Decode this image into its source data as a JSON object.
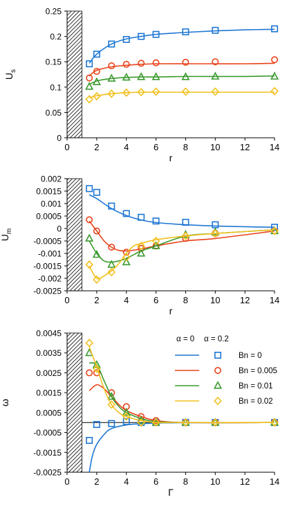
{
  "colors": {
    "Bn = 0": "#1f77d4",
    "Bn = 0.005": "#e8431a",
    "Bn = 0.01": "#3a9a2e",
    "Bn = 0.02": "#f2c01e"
  },
  "chart_data": [
    {
      "type": "line",
      "ylabel": "U",
      "ylabel_sub": "s",
      "xlabel": "r",
      "xlim": [
        0,
        14
      ],
      "ylim": [
        0,
        0.25
      ],
      "xticks": [
        "0",
        "2",
        "4",
        "6",
        "8",
        "10",
        "12",
        "14"
      ],
      "yticks": [
        "0",
        "0.05",
        "0.1",
        "0.15",
        "0.2",
        "0.25"
      ],
      "grid": false,
      "hatched_region_x": [
        0,
        1
      ],
      "series": [
        {
          "name": "Bn = 0",
          "marker": "square",
          "x_line": [
            1.5,
            2,
            3,
            4,
            5,
            6,
            8,
            10,
            12,
            14
          ],
          "y_line": [
            0.147,
            0.165,
            0.185,
            0.195,
            0.2,
            0.204,
            0.208,
            0.211,
            0.213,
            0.214
          ],
          "x_points": [
            1.5,
            2,
            3,
            4,
            5,
            6,
            8,
            10,
            14
          ],
          "y_points": [
            0.146,
            0.165,
            0.185,
            0.194,
            0.2,
            0.204,
            0.209,
            0.212,
            0.215
          ]
        },
        {
          "name": "Bn = 0.005",
          "marker": "circle",
          "x_line": [
            1.5,
            2,
            3,
            4,
            5,
            6,
            8,
            10,
            12,
            14
          ],
          "y_line": [
            0.122,
            0.133,
            0.14,
            0.143,
            0.145,
            0.146,
            0.146,
            0.146,
            0.146,
            0.147
          ],
          "x_points": [
            1.5,
            2,
            3,
            4,
            5,
            6,
            8,
            10,
            14
          ],
          "y_points": [
            0.118,
            0.131,
            0.142,
            0.145,
            0.147,
            0.148,
            0.149,
            0.15,
            0.154
          ]
        },
        {
          "name": "Bn = 0.01",
          "marker": "triangle",
          "x_line": [
            1.5,
            2,
            3,
            4,
            5,
            6,
            8,
            10,
            12,
            14
          ],
          "y_line": [
            0.105,
            0.112,
            0.117,
            0.119,
            0.12,
            0.12,
            0.121,
            0.121,
            0.121,
            0.122
          ],
          "x_points": [
            1.5,
            2,
            3,
            4,
            5,
            6,
            8,
            10,
            14
          ],
          "y_points": [
            0.101,
            0.11,
            0.117,
            0.119,
            0.12,
            0.12,
            0.12,
            0.121,
            0.121
          ]
        },
        {
          "name": "Bn = 0.02",
          "marker": "diamond",
          "x_line": [
            1.5,
            2,
            3,
            4,
            5,
            6,
            8,
            10,
            12,
            14
          ],
          "y_line": [
            0.079,
            0.083,
            0.087,
            0.089,
            0.09,
            0.09,
            0.09,
            0.09,
            0.09,
            0.09
          ],
          "x_points": [
            1.5,
            2,
            3,
            4,
            5,
            6,
            8,
            10,
            14
          ],
          "y_points": [
            0.076,
            0.082,
            0.087,
            0.089,
            0.09,
            0.091,
            0.091,
            0.091,
            0.092
          ]
        }
      ]
    },
    {
      "type": "line",
      "ylabel": "U",
      "ylabel_sub": "m",
      "xlabel": "r",
      "xlim": [
        0,
        14
      ],
      "ylim": [
        -0.0025,
        0.002
      ],
      "xticks": [
        "0",
        "2",
        "4",
        "6",
        "8",
        "10",
        "12",
        "14"
      ],
      "yticks": [
        "-0.0025",
        "-0.002",
        "-0.0015",
        "-0.001",
        "-0.0005",
        "0",
        "0.0005",
        "0.001",
        "0.0015",
        "0.002"
      ],
      "grid": false,
      "hatched_region_x": [
        0,
        1
      ],
      "series": [
        {
          "name": "Bn = 0",
          "marker": "square",
          "x_line": [
            1.5,
            2,
            3,
            4,
            5,
            6,
            8,
            10,
            12,
            14
          ],
          "y_line": [
            0.00135,
            0.0012,
            0.0008,
            0.00052,
            0.00034,
            0.00024,
            0.00015,
            0.0001,
            7e-05,
            5e-05
          ],
          "x_points": [
            1.5,
            2,
            3,
            4,
            5,
            6,
            8,
            10,
            14
          ],
          "y_points": [
            0.0016,
            0.00145,
            0.0009,
            0.0006,
            0.00045,
            0.0003,
            0.00025,
            0.00015,
            5e-05
          ]
        },
        {
          "name": "Bn = 0.005",
          "marker": "circle",
          "x_line": [
            1.5,
            2,
            2.5,
            3,
            3.5,
            4,
            4.5,
            5,
            6,
            8,
            10,
            14
          ],
          "y_line": [
            0.0003,
            -0.0001,
            -0.0005,
            -0.00075,
            -0.00088,
            -0.0009,
            -0.00087,
            -0.00082,
            -0.0007,
            -0.0005,
            -0.0004,
            -0.0001
          ],
          "x_points": [
            1.5,
            2,
            3,
            4,
            5,
            6,
            8,
            10,
            14
          ],
          "y_points": [
            0.00035,
            -0.0001,
            -0.00075,
            -0.00095,
            -0.0008,
            -0.0007,
            -0.0004,
            -0.0002,
            -0.0001
          ]
        },
        {
          "name": "Bn = 0.01",
          "marker": "triangle",
          "x_line": [
            1.5,
            2,
            2.5,
            3,
            3.5,
            4,
            4.5,
            5,
            6,
            8,
            10,
            14
          ],
          "y_line": [
            -0.0005,
            -0.001,
            -0.0013,
            -0.00135,
            -0.0013,
            -0.0012,
            -0.00105,
            -0.0009,
            -0.0007,
            -0.0003,
            -0.0002,
            -5e-05
          ],
          "x_points": [
            1.5,
            2,
            3,
            4,
            5,
            6,
            8,
            10,
            14
          ],
          "y_points": [
            -0.0004,
            -0.00105,
            -0.00145,
            -0.00135,
            -0.001,
            -0.0007,
            -0.00025,
            -0.00015,
            -0.0001
          ]
        },
        {
          "name": "Bn = 0.02",
          "marker": "diamond",
          "x_line": [
            1.5,
            2,
            2.5,
            3,
            3.5,
            4,
            4.5,
            5,
            6,
            8,
            10,
            14
          ],
          "y_line": [
            -0.0015,
            -0.002,
            -0.0019,
            -0.0017,
            -0.0014,
            -0.001,
            -0.0007,
            -0.0006,
            -0.00045,
            -0.0003,
            -0.0002,
            -5e-05
          ],
          "x_points": [
            1.5,
            2,
            3,
            4,
            5,
            6,
            8,
            10,
            14
          ],
          "y_points": [
            -0.00145,
            -0.00205,
            -0.00175,
            -0.00115,
            -0.0007,
            -0.0005,
            -0.0003,
            -0.0002,
            -0.0001
          ]
        }
      ]
    },
    {
      "type": "line",
      "ylabel": "ω",
      "ylabel_sub": "",
      "xlabel": "Γ",
      "xlim": [
        0,
        14
      ],
      "ylim": [
        -0.0025,
        0.0045
      ],
      "xticks": [
        "0",
        "2",
        "4",
        "6",
        "8",
        "10",
        "12",
        "14"
      ],
      "yticks": [
        "-0.0025",
        "-0.0015",
        "-0.0005",
        "0.0005",
        "0.0015",
        "0.0025",
        "0.0035",
        "0.0045"
      ],
      "grid": false,
      "hatched_region_x": [
        0,
        1
      ],
      "zero_line": true,
      "legend": {
        "placement": "top-right",
        "col1": "α = 0",
        "col2": "α = 0.2",
        "entries": [
          "Bn = 0",
          "Bn = 0.005",
          "Bn = 0.01",
          "Bn = 0.02"
        ]
      },
      "series": [
        {
          "name": "Bn = 0",
          "marker": "square",
          "x_line": [
            1.5,
            1.7,
            2,
            2.5,
            3,
            4,
            5,
            6,
            8,
            14
          ],
          "y_line": [
            -0.0025,
            -0.0017,
            -0.0011,
            -0.0006,
            -0.0003,
            -0.00012,
            -6e-05,
            -3e-05,
            -1e-05,
            0
          ],
          "x_points": [
            1.5,
            2,
            3,
            4,
            5,
            6,
            8,
            10,
            14
          ],
          "y_points": [
            -0.0009,
            -0.0001,
            -5e-05,
            5e-05,
            0,
            0,
            0,
            0,
            0
          ]
        },
        {
          "name": "Bn = 0.005",
          "marker": "circle",
          "x_line": [
            1.5,
            2,
            2.5,
            3,
            3.5,
            4,
            5,
            6,
            8,
            14
          ],
          "y_line": [
            0.0016,
            0.0019,
            0.0017,
            0.0013,
            0.0009,
            0.0006,
            0.0003,
            0.0001,
            0,
            0
          ],
          "x_points": [
            1.5,
            2,
            3,
            4,
            5,
            6,
            8,
            10,
            14
          ],
          "y_points": [
            0.0025,
            0.0025,
            0.0015,
            0.0008,
            0.0003,
            0.0001,
            0,
            0,
            0
          ]
        },
        {
          "name": "Bn = 0.01",
          "marker": "triangle",
          "x_line": [
            1.5,
            2,
            2.5,
            3,
            3.5,
            4,
            5,
            6,
            8,
            14
          ],
          "y_line": [
            0.003,
            0.0029,
            0.0021,
            0.0013,
            0.0008,
            0.0005,
            0.0002,
            5e-05,
            0,
            0
          ],
          "x_points": [
            1.5,
            2,
            3,
            4,
            5,
            6,
            8,
            10,
            14
          ],
          "y_points": [
            0.0035,
            0.0029,
            0.0013,
            0.0005,
            0.0001,
            0,
            0,
            0,
            0
          ]
        },
        {
          "name": "Bn = 0.02",
          "marker": "diamond",
          "x_line": [
            1.5,
            2,
            2.5,
            3,
            3.5,
            4,
            5,
            6,
            8,
            14
          ],
          "y_line": [
            0.0038,
            0.0028,
            0.0017,
            0.0009,
            0.0005,
            0.0003,
            0.0001,
            0,
            0,
            0
          ],
          "x_points": [
            1.5,
            2,
            3,
            4,
            5,
            6,
            8,
            10,
            14
          ],
          "y_points": [
            0.004,
            0.0027,
            0.0009,
            0.0003,
            0,
            0,
            0,
            0,
            0
          ]
        }
      ]
    }
  ]
}
